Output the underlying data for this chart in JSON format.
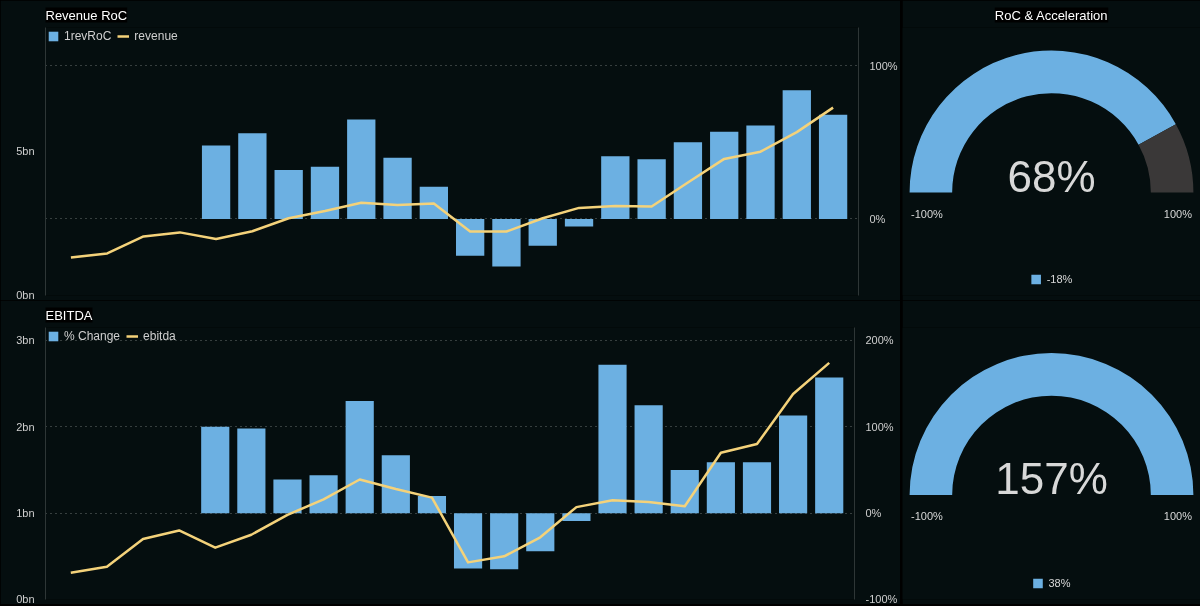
{
  "chart_data": [
    {
      "type": "bar",
      "title": "Revenue RoC",
      "legend": "top left",
      "grid": true,
      "categories": [
        null,
        null,
        null,
        null,
        null,
        null,
        null,
        null,
        null,
        null,
        null,
        null,
        null,
        null,
        null,
        null,
        null,
        null,
        null,
        null,
        null,
        null
      ],
      "series": [
        {
          "name": "1revRoC",
          "type": "bar",
          "axis": "y2",
          "color": "#6cb0e2",
          "values": [
            null,
            null,
            null,
            null,
            48,
            56,
            32,
            34,
            65,
            40,
            21,
            -24,
            -31,
            -17.5,
            -5,
            41,
            39,
            50,
            57,
            61,
            84,
            68
          ]
        },
        {
          "name": "revenue",
          "type": "line",
          "color": "#f4d27a",
          "values": [
            1.32,
            1.46,
            2.05,
            2.19,
            1.96,
            2.23,
            2.68,
            2.93,
            3.22,
            3.14,
            3.19,
            2.22,
            2.22,
            2.68,
            3.04,
            3.11,
            3.09,
            3.92,
            4.74,
            4.99,
            5.67,
            6.52
          ]
        }
      ],
      "ylim": [
        0,
        9.3
      ],
      "yticks": [
        {
          "value": 0,
          "label": "0bn"
        },
        {
          "value": 5,
          "label": "5bn"
        }
      ],
      "y2lim": [
        -50,
        125
      ],
      "y2ticks": [
        {
          "value": 0,
          "label": "0%"
        },
        {
          "value": 100,
          "label": "100%"
        }
      ]
    },
    {
      "type": "donut",
      "title": "RoC & Acceleration",
      "legend": "bottom",
      "categories": [
        "-18%",
        null
      ],
      "values": [
        84,
        16
      ],
      "colors": [
        "#6cb0e2",
        "#3a3838"
      ],
      "annotations": [
        "68%",
        "-100%",
        "100%"
      ]
    },
    {
      "type": "bar",
      "title": "EBITDA",
      "legend": "top left",
      "grid": true,
      "categories": [
        null,
        null,
        null,
        null,
        null,
        null,
        null,
        null,
        null,
        null,
        null,
        null,
        null,
        null,
        null,
        null,
        null,
        null,
        null,
        null,
        null,
        null
      ],
      "series": [
        {
          "name": "% Change",
          "type": "bar",
          "axis": "y2",
          "color": "#6cb0e2",
          "values": [
            null,
            null,
            null,
            null,
            100,
            98,
            39,
            44,
            130,
            67,
            20,
            -64,
            -65,
            -44,
            -9,
            172,
            125,
            50,
            59,
            59,
            113,
            157
          ]
        },
        {
          "name": "ebitda",
          "type": "line",
          "color": "#f4d27a",
          "values": [
            0.31,
            0.38,
            0.7,
            0.8,
            0.6,
            0.75,
            0.98,
            1.16,
            1.39,
            1.28,
            1.18,
            0.43,
            0.5,
            0.72,
            1.07,
            1.15,
            1.13,
            1.08,
            1.7,
            1.8,
            2.38,
            2.74
          ]
        }
      ],
      "ylim": [
        0,
        3.15
      ],
      "yticks": [
        {
          "value": 0,
          "label": "0bn"
        },
        {
          "value": 1,
          "label": "1bn"
        },
        {
          "value": 2,
          "label": "2bn"
        },
        {
          "value": 3,
          "label": "3bn"
        }
      ],
      "y2lim": [
        -100,
        215
      ],
      "y2ticks": [
        {
          "value": -100,
          "label": "-100%"
        },
        {
          "value": 0,
          "label": "0%"
        },
        {
          "value": 100,
          "label": "100%"
        },
        {
          "value": 200,
          "label": "200%"
        }
      ]
    },
    {
      "type": "pie",
      "legend": "bottom",
      "categories": [
        "38%"
      ],
      "values": [
        100
      ],
      "colors": [
        "#6cb0e2"
      ],
      "annotations": [
        "157%",
        "-100%",
        "100%"
      ]
    }
  ]
}
